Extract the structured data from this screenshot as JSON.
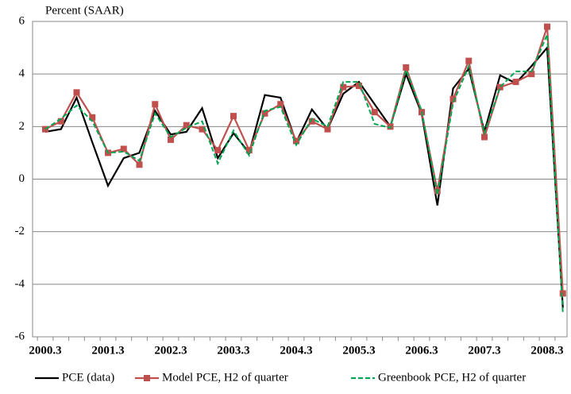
{
  "chart_data": {
    "type": "line",
    "y_label": "Percent (SAAR)",
    "categories": [
      "2000.3",
      null,
      null,
      null,
      "2001.3",
      null,
      null,
      null,
      "2002.3",
      null,
      null,
      null,
      "2003.3",
      null,
      null,
      null,
      "2004.3",
      null,
      null,
      null,
      "2005.3",
      null,
      null,
      null,
      "2006.3",
      null,
      null,
      null,
      "2007.3",
      null,
      null,
      null,
      "2008.3",
      null
    ],
    "series": [
      {
        "name": "PCE (data)",
        "color": "#000000",
        "style": "solid",
        "marker": "none",
        "values": [
          1.8,
          1.9,
          3.1,
          1.4,
          -0.25,
          0.8,
          1.0,
          2.6,
          1.7,
          1.8,
          2.7,
          0.8,
          1.75,
          1.0,
          3.2,
          3.1,
          1.4,
          2.65,
          1.9,
          3.25,
          3.7,
          2.85,
          2.0,
          4.0,
          2.5,
          -1.0,
          3.45,
          4.2,
          1.8,
          3.95,
          3.65,
          4.3,
          5.0,
          -4.9
        ]
      },
      {
        "name": "Model PCE, H2 of quarter",
        "color": "#c0504d",
        "style": "solid",
        "marker": "square",
        "values": [
          1.9,
          2.2,
          3.3,
          2.35,
          1.0,
          1.15,
          0.55,
          2.85,
          1.5,
          2.05,
          1.9,
          1.1,
          2.4,
          1.1,
          2.5,
          2.85,
          1.45,
          2.2,
          1.9,
          3.5,
          3.55,
          2.55,
          2.0,
          4.25,
          2.55,
          -0.45,
          3.05,
          4.5,
          1.6,
          3.5,
          3.7,
          4.0,
          5.8,
          -4.35
        ]
      },
      {
        "name": "Greenbook PCE, H2 of quarter",
        "color": "#00a651",
        "style": "dashed",
        "marker": "none",
        "values": [
          1.9,
          2.3,
          2.8,
          2.2,
          1.0,
          1.05,
          0.7,
          2.5,
          1.6,
          1.95,
          2.2,
          0.6,
          1.85,
          0.9,
          2.6,
          2.75,
          1.3,
          2.3,
          2.0,
          3.7,
          3.7,
          2.1,
          1.95,
          4.15,
          2.6,
          -0.6,
          2.9,
          4.3,
          1.75,
          3.5,
          4.1,
          4.1,
          5.5,
          -5.1
        ]
      }
    ],
    "ylim": [
      -6,
      6
    ],
    "yticks": [
      -6,
      -4,
      -2,
      0,
      2,
      4,
      6
    ],
    "grid": true,
    "legend": "bottom"
  }
}
